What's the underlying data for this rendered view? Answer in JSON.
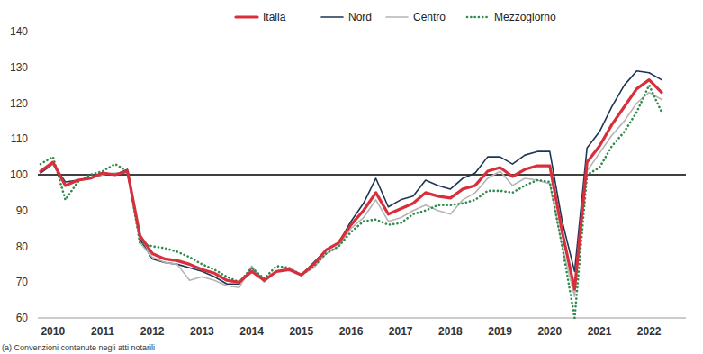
{
  "chart_data": {
    "type": "line",
    "footnote": "(a) Convenzioni contenute negli atti notarili",
    "categories": [
      null,
      "2010",
      null,
      null,
      null,
      "2011",
      null,
      null,
      null,
      "2012",
      null,
      null,
      null,
      "2013",
      null,
      null,
      null,
      "2014",
      null,
      null,
      null,
      "2015",
      null,
      null,
      null,
      "2016",
      null,
      null,
      null,
      "2017",
      null,
      null,
      null,
      "2018",
      null,
      null,
      null,
      "2019",
      null,
      null,
      null,
      "2020",
      null,
      null,
      null,
      "2021",
      null,
      null,
      null,
      "2022",
      null
    ],
    "ylim": [
      60,
      140
    ],
    "yticks": [
      60,
      70,
      80,
      90,
      100,
      110,
      120,
      130,
      140
    ],
    "reference_line": 100,
    "grid": false,
    "legend": "top",
    "series": [
      {
        "name": "Italia",
        "color": "#d7303c",
        "line_style": "solid",
        "values": [
          101,
          103.5,
          97,
          98.5,
          99,
          100.5,
          100,
          101,
          83,
          78,
          76.5,
          76,
          75,
          73.5,
          72.5,
          70.5,
          70,
          73,
          70.5,
          73,
          73.5,
          72,
          75,
          79,
          81,
          86,
          90,
          95,
          89,
          90.5,
          92,
          95,
          94,
          93.5,
          96,
          97,
          101,
          102,
          99.5,
          101.5,
          102.5,
          102.5,
          84,
          68,
          103.5,
          108,
          114,
          119,
          124,
          126.5,
          123
        ]
      },
      {
        "name": "Nord",
        "color": "#1e3655",
        "line_style": "solid",
        "values": [
          100.5,
          103,
          98,
          98.5,
          99,
          100,
          100,
          101.5,
          82,
          76.5,
          75.5,
          75,
          74,
          73,
          71.5,
          69.5,
          69.5,
          74,
          70.5,
          73,
          73.5,
          72,
          75.5,
          79,
          81,
          87,
          92,
          99,
          91,
          93,
          94,
          98.5,
          97,
          96,
          99,
          100.5,
          105,
          105,
          103,
          105.5,
          106.5,
          106.5,
          87,
          73,
          107.5,
          112,
          119,
          125,
          129,
          128.5,
          126.5
        ]
      },
      {
        "name": "Centro",
        "color": "#b4b4b4",
        "line_style": "solid",
        "values": [
          101,
          103,
          97,
          98.5,
          99,
          100,
          100.5,
          100.5,
          81,
          77,
          75.5,
          75,
          70.5,
          71.5,
          70.5,
          69,
          68.5,
          74.5,
          70,
          73,
          74,
          72,
          74,
          78,
          80,
          85,
          88,
          93,
          87,
          88,
          90,
          91.5,
          90,
          89,
          93,
          95,
          99,
          101,
          97,
          99,
          98.5,
          97.5,
          80,
          66,
          101,
          106,
          111,
          115,
          120,
          123,
          121
        ]
      },
      {
        "name": "Mezzogiorno",
        "color": "#2f8a4b",
        "line_style": "dotted",
        "values": [
          103,
          105,
          93,
          98,
          100,
          101,
          103,
          101,
          81,
          80,
          79.5,
          78.5,
          77,
          75,
          73.5,
          71.5,
          70,
          74,
          71,
          74.5,
          74,
          72,
          74.5,
          78,
          80,
          84,
          87,
          87.5,
          86,
          86.5,
          89,
          90,
          91.5,
          91.5,
          92,
          93,
          95.5,
          95.5,
          95,
          97,
          98.5,
          98,
          80,
          60,
          100,
          102,
          108,
          112,
          117.5,
          125,
          117.5
        ]
      }
    ]
  }
}
